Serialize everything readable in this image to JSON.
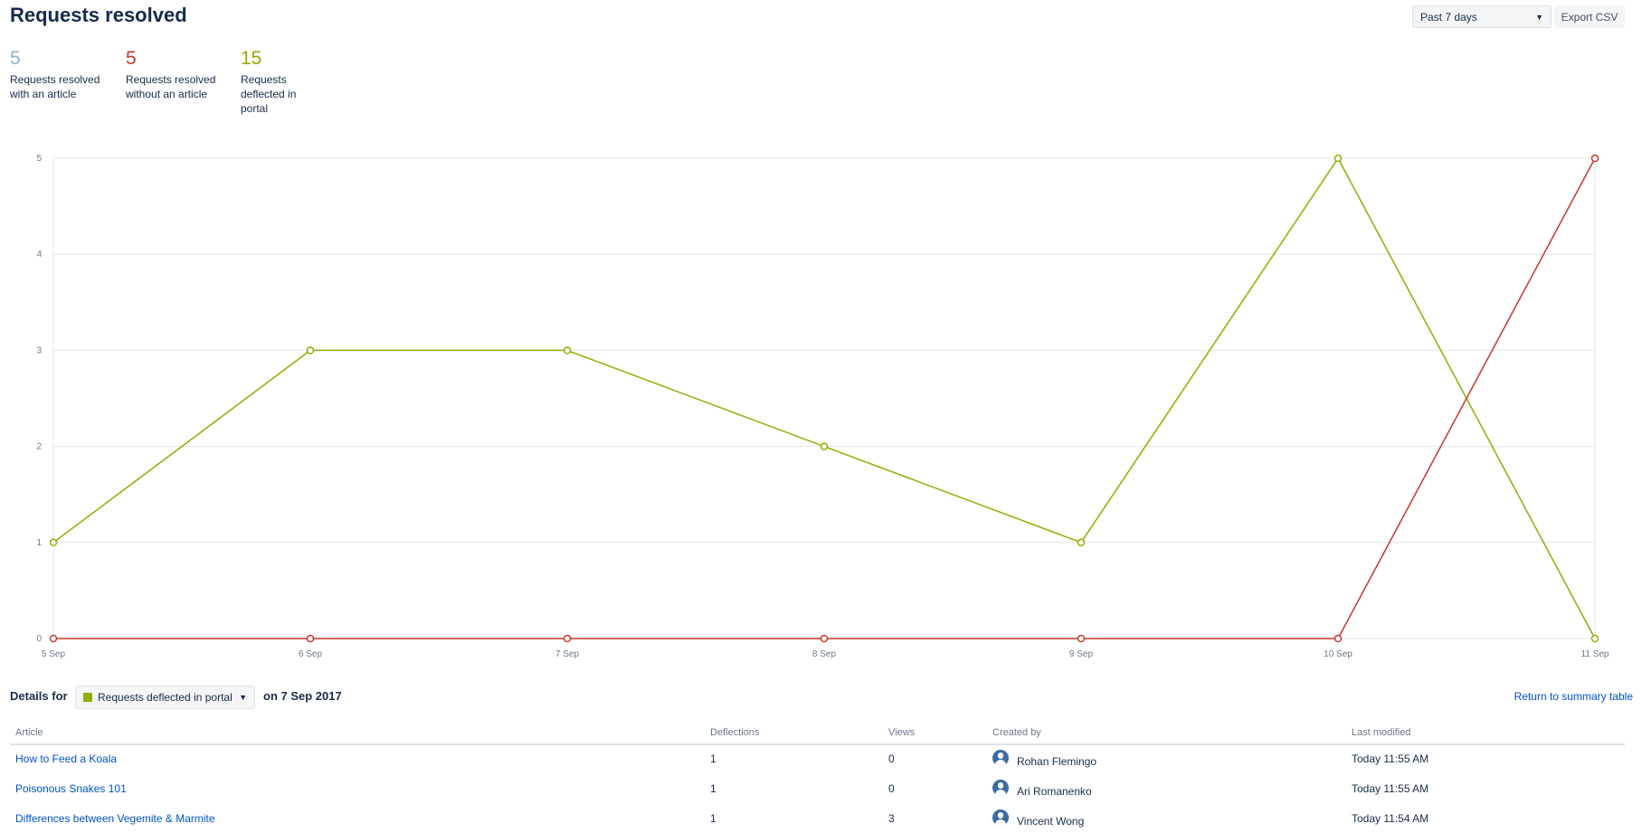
{
  "header": {
    "title": "Requests resolved",
    "period_select": "Past 7 days",
    "export_label": "Export CSV"
  },
  "stats": [
    {
      "value": "5",
      "label": "Requests resolved with an article",
      "color": "#8ab4cc"
    },
    {
      "value": "5",
      "label": "Requests resolved without an article",
      "color": "#c9372c"
    },
    {
      "value": "15",
      "label": "Requests deflected in portal",
      "color": "#8db000"
    }
  ],
  "chart_data": {
    "type": "line",
    "categories": [
      "5 Sep",
      "6 Sep",
      "7 Sep",
      "8 Sep",
      "9 Sep",
      "10 Sep",
      "11 Sep"
    ],
    "ylim": [
      0,
      5
    ],
    "yticks": [
      "0",
      "1",
      "2",
      "3",
      "4",
      "5"
    ],
    "grid": true,
    "series": [
      {
        "key": "deflected",
        "values": [
          1,
          3,
          3,
          2,
          1,
          5,
          0
        ],
        "color": "#8db000"
      },
      {
        "key": "without_article",
        "values": [
          0,
          0,
          0,
          0,
          0,
          0,
          5
        ],
        "color": "#c9372c"
      }
    ]
  },
  "details": {
    "label": "Details for",
    "series_select": "Requests deflected in portal",
    "series_color": "#8db000",
    "date_text": "on 7 Sep 2017",
    "return_link": "Return to summary table",
    "columns": [
      "Article",
      "Deflections",
      "Views",
      "Created by",
      "Last modified"
    ],
    "rows": [
      {
        "article": "How to Feed a Koala",
        "deflections": "1",
        "views": "0",
        "created_by": "Rohan Flemingo",
        "modified": "Today 11:55 AM"
      },
      {
        "article": "Poisonous Snakes 101",
        "deflections": "1",
        "views": "0",
        "created_by": "Ari Romanenko",
        "modified": "Today 11:55 AM"
      },
      {
        "article": "Differences between Vegemite & Marmite",
        "deflections": "1",
        "views": "3",
        "created_by": "Vincent Wong",
        "modified": "Today 11:54 AM"
      }
    ]
  }
}
